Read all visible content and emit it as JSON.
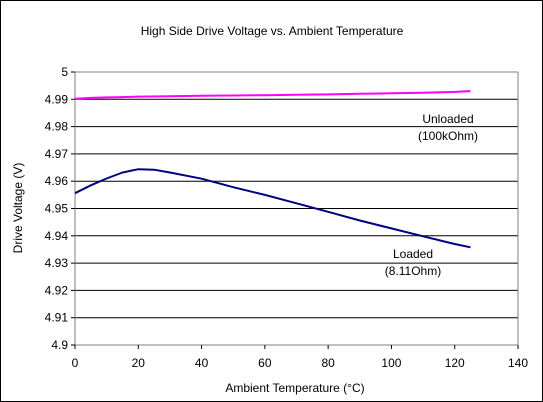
{
  "chart_data": {
    "type": "line",
    "title": "High Side Drive Voltage vs. Ambient Temperature",
    "xlabel": "Ambient Temperature (°C)",
    "ylabel": "Drive Voltage (V)",
    "xlim": [
      0,
      140
    ],
    "ylim": [
      4.9,
      5.0
    ],
    "x_ticks": [
      "0",
      "20",
      "40",
      "60",
      "80",
      "100",
      "120",
      "140"
    ],
    "y_ticks": [
      "4.9",
      "4.91",
      "4.92",
      "4.93",
      "4.94",
      "4.95",
      "4.96",
      "4.97",
      "4.98",
      "4.99",
      "5"
    ],
    "grid": "horizontal",
    "legend": "none",
    "series": [
      {
        "color": "#ff00ff",
        "annotation_lines": [
          "Unloaded",
          "(100kOhm)"
        ],
        "points": [
          [
            0,
            4.9902
          ],
          [
            5,
            4.9905
          ],
          [
            10,
            4.9907
          ],
          [
            15,
            4.9908
          ],
          [
            20,
            4.991
          ],
          [
            30,
            4.9911
          ],
          [
            40,
            4.9913
          ],
          [
            50,
            4.9914
          ],
          [
            60,
            4.9915
          ],
          [
            70,
            4.9917
          ],
          [
            80,
            4.9918
          ],
          [
            90,
            4.992
          ],
          [
            100,
            4.9922
          ],
          [
            110,
            4.9924
          ],
          [
            120,
            4.9927
          ],
          [
            125,
            4.993
          ]
        ]
      },
      {
        "color": "#000080",
        "annotation_lines": [
          "Loaded",
          "(8.11Ohm)"
        ],
        "points": [
          [
            0,
            4.9556
          ],
          [
            5,
            4.9585
          ],
          [
            10,
            4.961
          ],
          [
            15,
            4.9632
          ],
          [
            20,
            4.9644
          ],
          [
            25,
            4.9642
          ],
          [
            30,
            4.9632
          ],
          [
            40,
            4.9609
          ],
          [
            50,
            4.9578
          ],
          [
            60,
            4.955
          ],
          [
            70,
            4.9519
          ],
          [
            80,
            4.9488
          ],
          [
            90,
            4.9456
          ],
          [
            100,
            4.9427
          ],
          [
            110,
            4.9398
          ],
          [
            120,
            4.937
          ],
          [
            125,
            4.9358
          ]
        ]
      }
    ]
  }
}
